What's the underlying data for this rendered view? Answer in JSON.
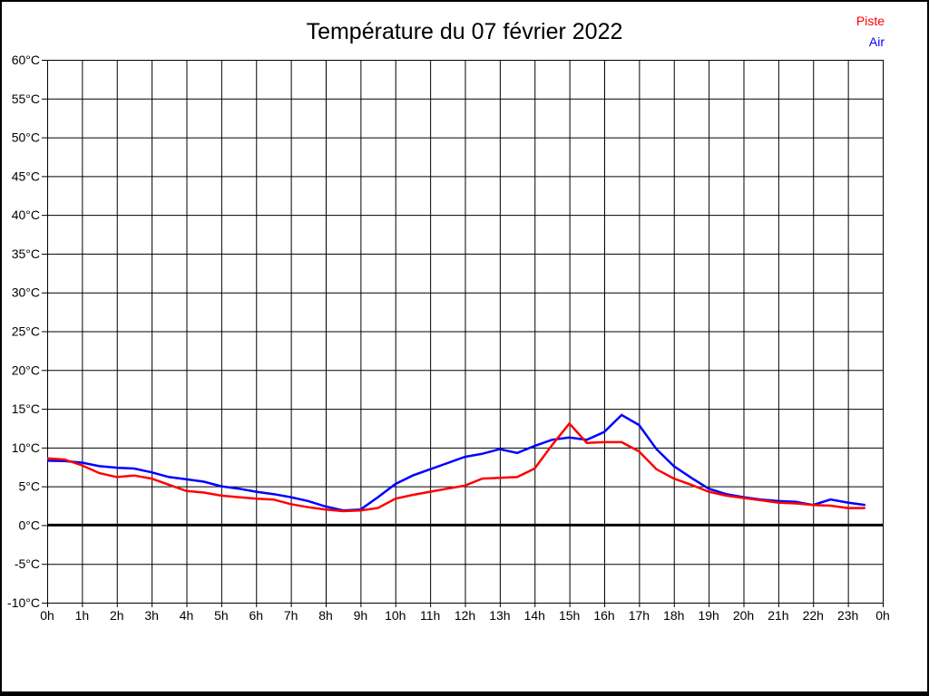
{
  "title": "Température du 07 février 2022",
  "colors": {
    "background": "#ffffff",
    "frame": "#000000",
    "grid": "#000000",
    "text": "#000000",
    "piste": "#ff0000",
    "air": "#0000ff"
  },
  "chart_data": {
    "type": "line",
    "title": "Température du 07 février 2022",
    "xlabel": "",
    "ylabel": "",
    "x_unit": "h",
    "y_unit": "°C",
    "xlim": [
      0,
      24
    ],
    "ylim": [
      -10,
      60
    ],
    "y_tick_step": 5,
    "grid": true,
    "zero_line_bold": true,
    "legend_position": "top-right",
    "x_tick_labels": [
      "0h",
      "1h",
      "2h",
      "3h",
      "4h",
      "5h",
      "6h",
      "7h",
      "8h",
      "9h",
      "10h",
      "11h",
      "12h",
      "13h",
      "14h",
      "15h",
      "16h",
      "17h",
      "18h",
      "19h",
      "20h",
      "21h",
      "22h",
      "23h",
      "0h"
    ],
    "y_tick_labels": [
      "60°C",
      "55°C",
      "50°C",
      "45°C",
      "40°C",
      "35°C",
      "30°C",
      "25°C",
      "20°C",
      "15°C",
      "10°C",
      "5°C",
      "0°C",
      "-5°C",
      "-10°C"
    ],
    "sample_interval_hours": 0.5,
    "x_start_hour": 0,
    "series": [
      {
        "name": "Air",
        "color": "#0000ff",
        "values": [
          8.3,
          8.25,
          8.05,
          7.6,
          7.4,
          7.3,
          6.8,
          6.2,
          5.9,
          5.6,
          5.0,
          4.7,
          4.3,
          4.0,
          3.6,
          3.1,
          2.4,
          1.9,
          2.0,
          3.6,
          5.3,
          6.4,
          7.2,
          8.0,
          8.8,
          9.2,
          9.8,
          9.3,
          10.2,
          11.0,
          11.3,
          11.0,
          12.0,
          14.2,
          12.9,
          9.8,
          7.6,
          6.1,
          4.7,
          4.0,
          3.6,
          3.3,
          3.1,
          3.0,
          2.6,
          3.3,
          2.9,
          2.6
        ]
      },
      {
        "name": "Piste",
        "color": "#ff0000",
        "values": [
          8.6,
          8.45,
          7.7,
          6.7,
          6.2,
          6.4,
          6.0,
          5.2,
          4.4,
          4.2,
          3.8,
          3.6,
          3.4,
          3.3,
          2.7,
          2.3,
          2.0,
          1.8,
          1.9,
          2.2,
          3.4,
          3.9,
          4.3,
          4.7,
          5.1,
          6.0,
          6.1,
          6.2,
          7.3,
          10.3,
          13.1,
          10.6,
          10.7,
          10.7,
          9.5,
          7.2,
          6.0,
          5.2,
          4.3,
          3.8,
          3.5,
          3.2,
          2.9,
          2.8,
          2.6,
          2.5,
          2.2,
          2.2
        ]
      }
    ]
  }
}
